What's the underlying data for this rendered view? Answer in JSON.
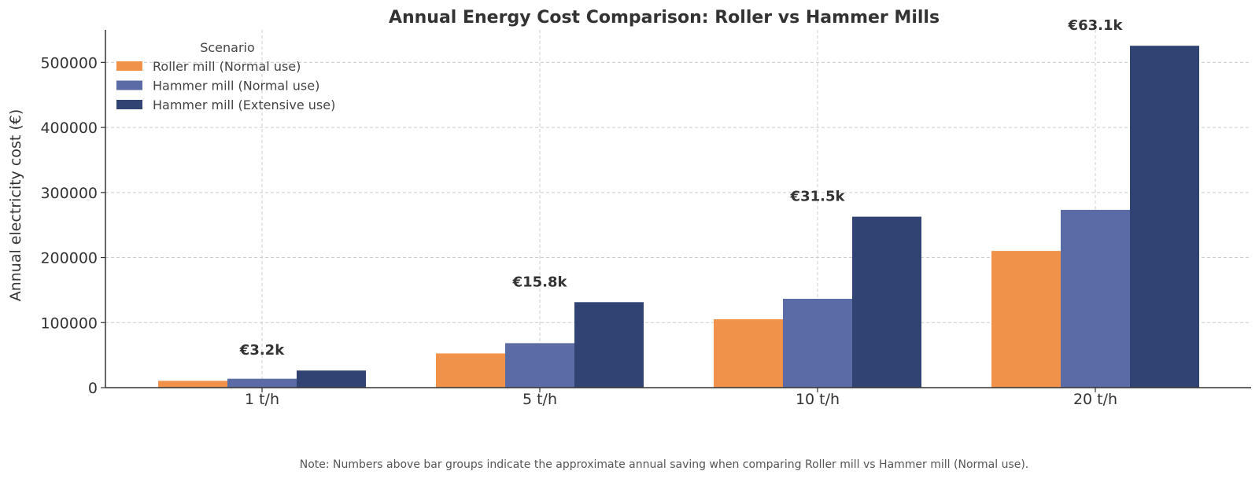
{
  "chart_data": {
    "type": "bar",
    "title": "Annual Energy Cost Comparison: Roller vs Hammer Mills",
    "xlabel": "",
    "ylabel": "Annual electricity cost (€)",
    "categories": [
      "1 t/h",
      "5 t/h",
      "10 t/h",
      "20 t/h"
    ],
    "series": [
      {
        "name": "Roller mill (Normal use)",
        "color": "#F0924A",
        "values": [
          10500,
          52600,
          105100,
          210200
        ]
      },
      {
        "name": "Hammer mill (Normal use)",
        "color": "#5A6BA5",
        "values": [
          13700,
          68400,
          136600,
          273300
        ]
      },
      {
        "name": "Hammer mill (Extensive use)",
        "color": "#314373",
        "values": [
          26300,
          131400,
          262800,
          525600
        ]
      }
    ],
    "group_labels": [
      "€3.2k",
      "€15.8k",
      "€31.5k",
      "€63.1k"
    ],
    "ylim": [
      0,
      550000
    ],
    "yticks": [
      0,
      100000,
      200000,
      300000,
      400000,
      500000
    ],
    "grid": true,
    "legend": {
      "title": "Scenario",
      "placement": "top-left"
    }
  },
  "note": "Note: Numbers above bar groups indicate the approximate annual saving when comparing Roller mill vs Hammer mill (Normal use)."
}
